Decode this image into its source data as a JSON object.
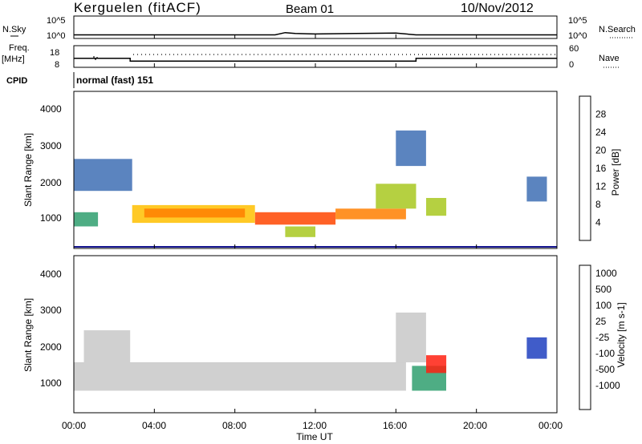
{
  "header": {
    "station": "Kerguelen (fitACF)",
    "beam": "Beam 01",
    "date": "10/Nov/2012"
  },
  "top_panels": {
    "nsky_label": "N.Sky",
    "nsky_ticks": [
      "10^5",
      "10^0"
    ],
    "nsearch_label": "N.Search",
    "nsearch_ticks": [
      "10^5",
      "10^0"
    ],
    "freq_label": "Freq.",
    "freq_unit": "[MHz]",
    "freq_ticks": [
      "18",
      "8"
    ],
    "nave_label": "Nave",
    "nave_ticks": [
      "60",
      "0"
    ],
    "cpid_label": "CPID",
    "cpid_value": "normal (fast) 151"
  },
  "x_axis": {
    "title": "Time UT",
    "ticks": [
      "00:00",
      "04:00",
      "08:00",
      "12:00",
      "16:00",
      "20:00",
      "00:00"
    ]
  },
  "panels": {
    "power": {
      "ylabel": "Slant Range [km]",
      "yticks": [
        "4000",
        "3000",
        "2000",
        "1000"
      ],
      "cbar_label": "Power [dB]",
      "cbar_ticks": [
        "28",
        "24",
        "20",
        "16",
        "12",
        "8",
        "4"
      ],
      "cbar_colors": [
        "#ff0000",
        "#ff4500",
        "#ff7f00",
        "#ffbf00",
        "#a8c820",
        "#2f9f6f",
        "#3e6fb4",
        "#1414d0"
      ]
    },
    "velocity": {
      "ylabel": "Slant Range [km]",
      "yticks": [
        "4000",
        "3000",
        "2000",
        "1000"
      ],
      "cbar_label": "Velocity [m s-1]",
      "cbar_ticks": [
        "1000",
        "500",
        "100",
        "25",
        "-25",
        "-100",
        "-500",
        "-1000"
      ],
      "cbar_colors": [
        "#1f3fbf",
        "#2f6fb8",
        "#2f9f6f",
        "#5fd040",
        "#c8c8c8",
        "#ff9f20",
        "#ff6010",
        "#ff2010",
        "#e00000"
      ]
    }
  },
  "chart_data": [
    {
      "type": "line",
      "title": "N.Sky / N.Search",
      "x": [
        0,
        10.0,
        10.5,
        11.0,
        12.0,
        14.0,
        16.0,
        17.0,
        24.0
      ],
      "series": [
        {
          "name": "N.Sky",
          "values": [
            0.8,
            0.8,
            1.3,
            1.1,
            1.0,
            1.1,
            1.2,
            0.8,
            0.8
          ]
        }
      ],
      "xlim": [
        0,
        24
      ],
      "ylim": [
        0,
        5
      ]
    },
    {
      "type": "line",
      "title": "Freq. / Nave",
      "x": [
        0,
        2.8,
        2.8,
        17.0,
        17.0,
        24.0
      ],
      "series": [
        {
          "name": "Freq. [MHz]",
          "values": [
            12.2,
            12.2,
            10.9,
            10.9,
            12.2,
            12.2
          ]
        }
      ],
      "xlim": [
        0,
        24
      ],
      "ylim": [
        8,
        18
      ]
    },
    {
      "type": "heatmap",
      "title": "Power [dB]",
      "xlabel": "Time UT",
      "ylabel": "Slant Range [km]",
      "xlim": [
        0,
        24
      ],
      "ylim": [
        180,
        4600
      ],
      "zlim": [
        0,
        32
      ],
      "regions": [
        {
          "t0": 0.0,
          "t1": 2.9,
          "r0": 1800,
          "r1": 2700,
          "value": 6
        },
        {
          "t0": 0.0,
          "t1": 1.2,
          "r0": 800,
          "r1": 1200,
          "value": 10
        },
        {
          "t0": 2.9,
          "t1": 9.0,
          "r0": 900,
          "r1": 1400,
          "value": 18
        },
        {
          "t0": 3.5,
          "t1": 8.5,
          "r0": 1050,
          "r1": 1300,
          "value": 24
        },
        {
          "t0": 9.0,
          "t1": 13.0,
          "r0": 850,
          "r1": 1200,
          "value": 26
        },
        {
          "t0": 13.0,
          "t1": 16.5,
          "r0": 1000,
          "r1": 1300,
          "value": 22
        },
        {
          "t0": 15.0,
          "t1": 17.0,
          "r0": 1300,
          "r1": 2000,
          "value": 16
        },
        {
          "t0": 17.5,
          "t1": 18.5,
          "r0": 1100,
          "r1": 1600,
          "value": 14
        },
        {
          "t0": 16.0,
          "t1": 17.5,
          "r0": 2500,
          "r1": 3500,
          "value": 5
        },
        {
          "t0": 10.5,
          "t1": 12.0,
          "r0": 500,
          "r1": 800,
          "value": 14
        },
        {
          "t0": 22.5,
          "t1": 23.5,
          "r0": 1500,
          "r1": 2200,
          "value": 6
        }
      ]
    },
    {
      "type": "heatmap",
      "title": "Velocity [m s-1]",
      "xlabel": "Time UT",
      "ylabel": "Slant Range [km]",
      "xlim": [
        0,
        24
      ],
      "ylim": [
        180,
        4600
      ],
      "zlim": [
        -1000,
        1000
      ],
      "regions": [
        {
          "t0": 0.0,
          "t1": 16.5,
          "r0": 800,
          "r1": 1600,
          "value": 0
        },
        {
          "t0": 0.5,
          "t1": 2.8,
          "r0": 1600,
          "r1": 2500,
          "value": 0
        },
        {
          "t0": 16.0,
          "t1": 17.5,
          "r0": 1600,
          "r1": 3000,
          "value": 0
        },
        {
          "t0": 16.8,
          "t1": 18.5,
          "r0": 800,
          "r1": 1500,
          "value": 120
        },
        {
          "t0": 17.5,
          "t1": 18.5,
          "r0": 1300,
          "r1": 1800,
          "value": -300
        },
        {
          "t0": 22.5,
          "t1": 23.5,
          "r0": 1700,
          "r1": 2300,
          "value": 800
        }
      ]
    }
  ]
}
